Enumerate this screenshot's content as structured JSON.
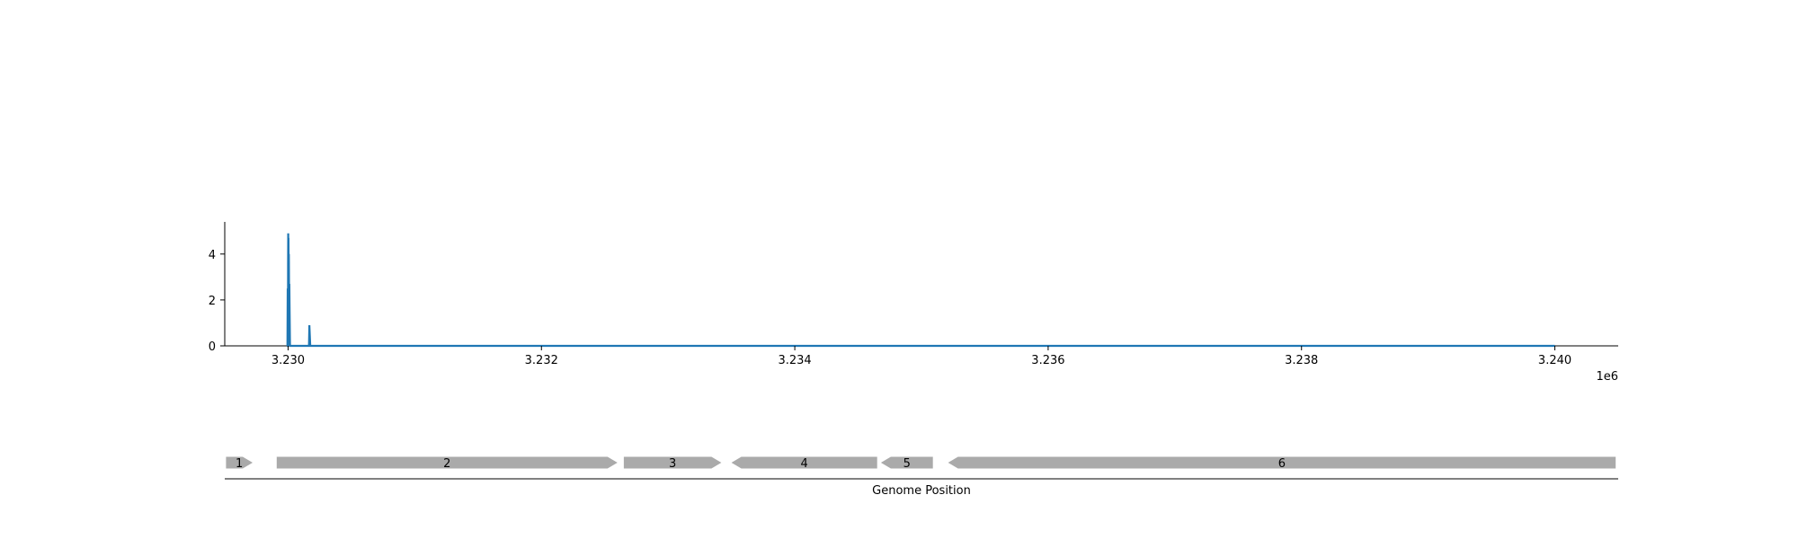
{
  "chart_data": {
    "type": "line",
    "coverage": {
      "x": [
        3229990,
        3229995,
        3229997,
        3229999,
        3230000,
        3230001,
        3230002,
        3230003,
        3230005,
        3230006,
        3230008,
        3230010,
        3230012,
        3230015,
        3230030,
        3230040,
        3230100,
        3230165,
        3230168,
        3230175,
        3230200,
        3231000,
        3232000,
        3233000,
        3234000,
        3235000,
        3236000,
        3237000,
        3238000,
        3239000,
        3240000
      ],
      "y": [
        0,
        0,
        2.5,
        0,
        3.5,
        4.9,
        3.0,
        4.7,
        2.7,
        4.0,
        2.0,
        2.7,
        1.5,
        0,
        0,
        0,
        0,
        0,
        0.9,
        0,
        0,
        0,
        0,
        0,
        0,
        0,
        0,
        0,
        0,
        0,
        0
      ],
      "color": "#1f77b4"
    },
    "xlim": [
      3229500,
      3240500
    ],
    "ylim": [
      0,
      5.4
    ],
    "x_ticks": [
      3230000,
      3232000,
      3234000,
      3236000,
      3238000,
      3240000
    ],
    "x_tick_labels": [
      "3.230",
      "3.232",
      "3.234",
      "3.236",
      "3.238",
      "3.240"
    ],
    "x_offset_label": "1e6",
    "y_ticks": [
      0,
      2,
      4
    ],
    "y_tick_labels": [
      "0",
      "2",
      "4"
    ],
    "genes": [
      {
        "label": "1",
        "start": 3229510,
        "end": 3229720,
        "strand": "+"
      },
      {
        "label": "2",
        "start": 3229910,
        "end": 3232600,
        "strand": "+"
      },
      {
        "label": "3",
        "start": 3232650,
        "end": 3233420,
        "strand": "+"
      },
      {
        "label": "4",
        "start": 3233500,
        "end": 3234650,
        "strand": "-"
      },
      {
        "label": "5",
        "start": 3234680,
        "end": 3235090,
        "strand": "-"
      },
      {
        "label": "6",
        "start": 3235210,
        "end": 3240480,
        "strand": "-"
      }
    ],
    "gene_color": "#aaaaaa",
    "xlabel": "Genome Position"
  }
}
